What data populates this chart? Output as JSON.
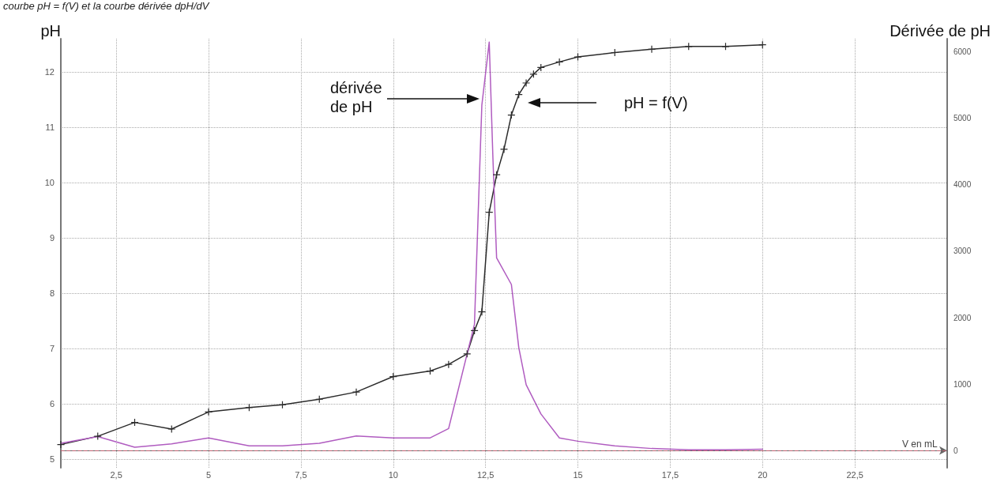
{
  "chart_data": {
    "type": "line",
    "title": "courbe pH = f(V) et la courbe dérivée dpH/dV",
    "xlabel": "V en mL",
    "ylabel": "pH",
    "y2label": "Dérivée de pH",
    "xlim": [
      1,
      25
    ],
    "xticks": [
      {
        "value": 2.5,
        "label": "2,5"
      },
      5,
      {
        "value": 7.5,
        "label": "7,5"
      },
      10,
      {
        "value": 12.5,
        "label": "12,5"
      },
      15,
      {
        "value": 17.5,
        "label": "17,5"
      },
      20,
      {
        "value": 22.5,
        "label": "22,5"
      }
    ],
    "ylim": [
      4.84,
      12.6
    ],
    "yticks": [
      5,
      6,
      7,
      8,
      9,
      10,
      11,
      12
    ],
    "y2lim": [
      -260,
      6200
    ],
    "y2ticks": [
      0,
      1000,
      2000,
      3000,
      4000,
      5000,
      6000
    ],
    "grid": true,
    "series": [
      {
        "color": "#2b2b2b",
        "marker": "cross",
        "line_style": "solid",
        "x": [
          1,
          2,
          3,
          4,
          5,
          6.1,
          7,
          8,
          9,
          10,
          11,
          11.5,
          12,
          12.2,
          12.4,
          12.6,
          12.8,
          13,
          13.2,
          13.4,
          13.6,
          13.8,
          14,
          14.5,
          15,
          16,
          17,
          18,
          19,
          20
        ],
        "values": [
          5.26,
          5.41,
          5.66,
          5.54,
          5.85,
          5.93,
          5.98,
          6.08,
          6.21,
          6.49,
          6.59,
          6.71,
          6.9,
          7.32,
          7.66,
          9.46,
          10.14,
          10.6,
          11.22,
          11.59,
          11.8,
          11.96,
          12.08,
          12.18,
          12.27,
          12.35,
          12.41,
          12.46,
          12.46,
          12.49
        ]
      },
      {
        "color": "#b05cc0",
        "marker": "none",
        "line_style": "solid",
        "axis": "y2",
        "x": [
          1,
          2,
          3,
          4,
          5,
          6.1,
          7,
          8,
          9,
          10,
          11,
          11.5,
          12.2,
          12.4,
          12.6,
          12.7,
          12.8,
          13.2,
          13.4,
          13.6,
          14,
          14.5,
          15,
          16,
          17,
          18,
          19,
          20
        ],
        "values": [
          110,
          210,
          50,
          100,
          190,
          70,
          70,
          110,
          220,
          190,
          190,
          330,
          1900,
          5200,
          6150,
          4400,
          2900,
          2500,
          1550,
          990,
          550,
          190,
          140,
          70,
          30,
          10,
          10,
          20
        ]
      }
    ],
    "ref_lines": [
      {
        "axis": "y2",
        "value": 0,
        "color": "#c06070",
        "line_style": "dashed"
      }
    ],
    "annotations": [
      "dérivée\nde pH",
      "pH = f(V)"
    ]
  }
}
